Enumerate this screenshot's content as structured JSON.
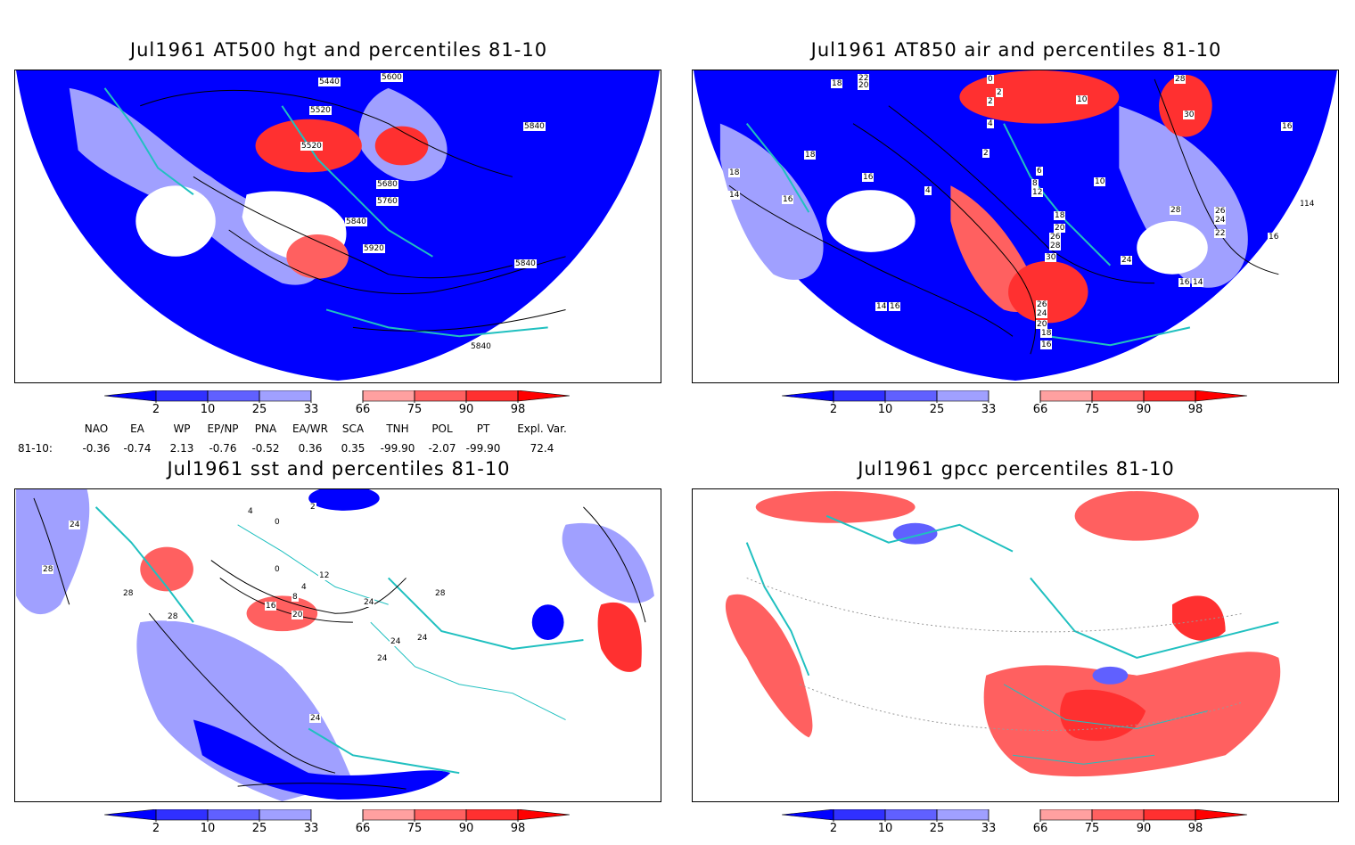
{
  "panels": [
    {
      "title": "Jul1961 AT500 hgt and percentiles 81-10",
      "contour_labels": [
        "5440",
        "5600",
        "5520",
        "5520",
        "5680",
        "5760",
        "5840",
        "5840",
        "5920",
        "5840",
        "5840"
      ]
    },
    {
      "title": "Jul1961 AT850 air and percentiles 81-10",
      "contour_labels": [
        "18",
        "22",
        "20",
        "0",
        "2",
        "2",
        "4",
        "2",
        "10",
        "28",
        "30",
        "16",
        "18",
        "16",
        "18",
        "16",
        "14",
        "4",
        "6",
        "8",
        "12",
        "10",
        "18",
        "20",
        "26",
        "28",
        "30",
        "24",
        "28",
        "26",
        "24",
        "22",
        "16",
        "14",
        "16",
        "18",
        "14",
        "26",
        "24",
        "20",
        "18",
        "16",
        "16",
        "14"
      ]
    },
    {
      "title": "Jul1961 sst and percentiles 81-10",
      "contour_labels": [
        "28",
        "24",
        "28",
        "28",
        "4",
        "0",
        "2",
        "0",
        "4",
        "8",
        "12",
        "16",
        "20",
        "24",
        "24",
        "24",
        "28",
        "24",
        "24"
      ]
    },
    {
      "title": "Jul1961 gpcc percentiles 81-10",
      "contour_labels": []
    }
  ],
  "colorbar": {
    "ticks": [
      "2",
      "10",
      "25",
      "33",
      "66",
      "75",
      "90",
      "98"
    ],
    "colors": {
      "blue_extreme": "#0000ff",
      "blue_dark": "#3030ff",
      "blue_mid": "#6060ff",
      "blue_light": "#a0a0ff",
      "white": "#ffffff",
      "red_light": "#ffa0a0",
      "red_mid": "#ff6060",
      "red_dark": "#ff3030",
      "red_extreme": "#ff0000",
      "coast": "#20c0c0"
    }
  },
  "indices": {
    "headers": [
      "NAO",
      "EA",
      "WP",
      "EP/NP",
      "PNA",
      "EA/WR",
      "SCA",
      "TNH",
      "POL",
      "PT",
      "Expl. Var."
    ],
    "row_label": "81-10:",
    "values": [
      "-0.36",
      "-0.74",
      "2.13",
      "-0.76",
      "-0.52",
      "0.36",
      "0.35",
      "-99.90",
      "-2.07",
      "-99.90",
      "72.4"
    ]
  }
}
